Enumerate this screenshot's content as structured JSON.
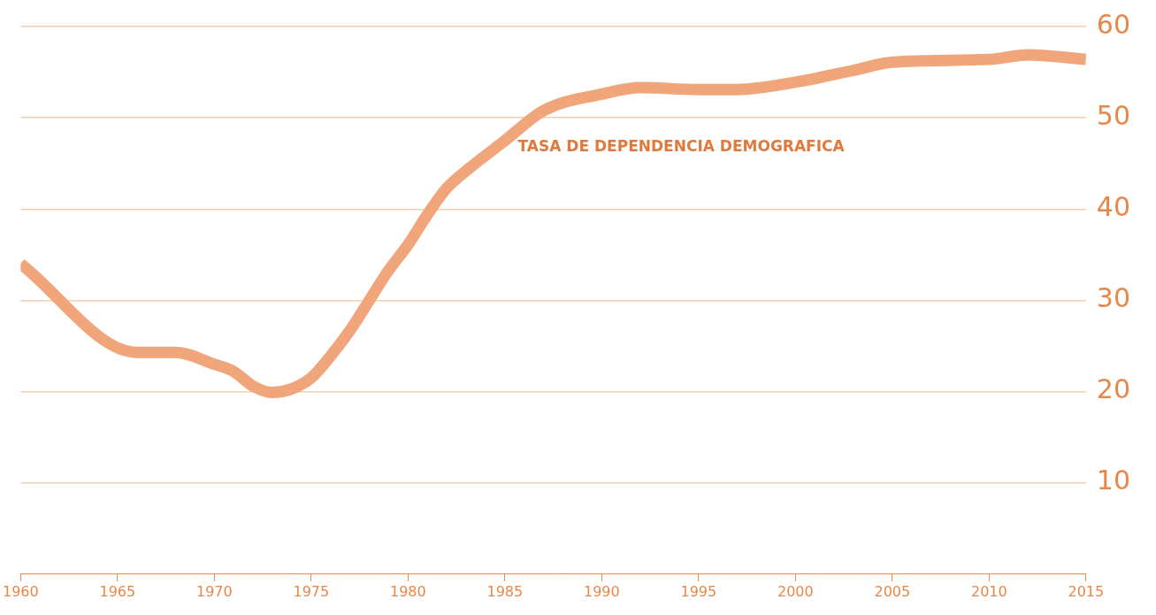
{
  "chart_data": {
    "type": "line",
    "series": [
      {
        "name": "TASA DE DEPENDENCIA DEMOGRAFICA",
        "color": "#f0a57a",
        "x": [
          1960,
          1966,
          1968,
          1970,
          1971,
          1972,
          1973,
          1974,
          1975,
          1976,
          1977,
          1978,
          1979,
          1980,
          1981,
          1982,
          1983,
          1985,
          1987,
          1990,
          1992,
          1995,
          1997,
          2000,
          2003,
          2005,
          2010,
          2012,
          2015
        ],
        "values": [
          34,
          24.3,
          24.3,
          23,
          22.2,
          20.6,
          19.9,
          20.3,
          21.5,
          23.9,
          26.7,
          30,
          33.3,
          36.1,
          39.4,
          42.3,
          44.2,
          47.5,
          50.8,
          52.6,
          53.3,
          53.1,
          53.1,
          53.9,
          55.2,
          56.1,
          56.4,
          56.9,
          56.4
        ]
      }
    ],
    "xlim": [
      1960,
      2015
    ],
    "xticks": [
      1960,
      1965,
      1970,
      1975,
      1980,
      1985,
      1990,
      1995,
      2000,
      2005,
      2010,
      2015
    ],
    "ylim": [
      0,
      60
    ],
    "yticks": [
      10,
      20,
      30,
      40,
      50,
      60
    ],
    "grid": true
  }
}
